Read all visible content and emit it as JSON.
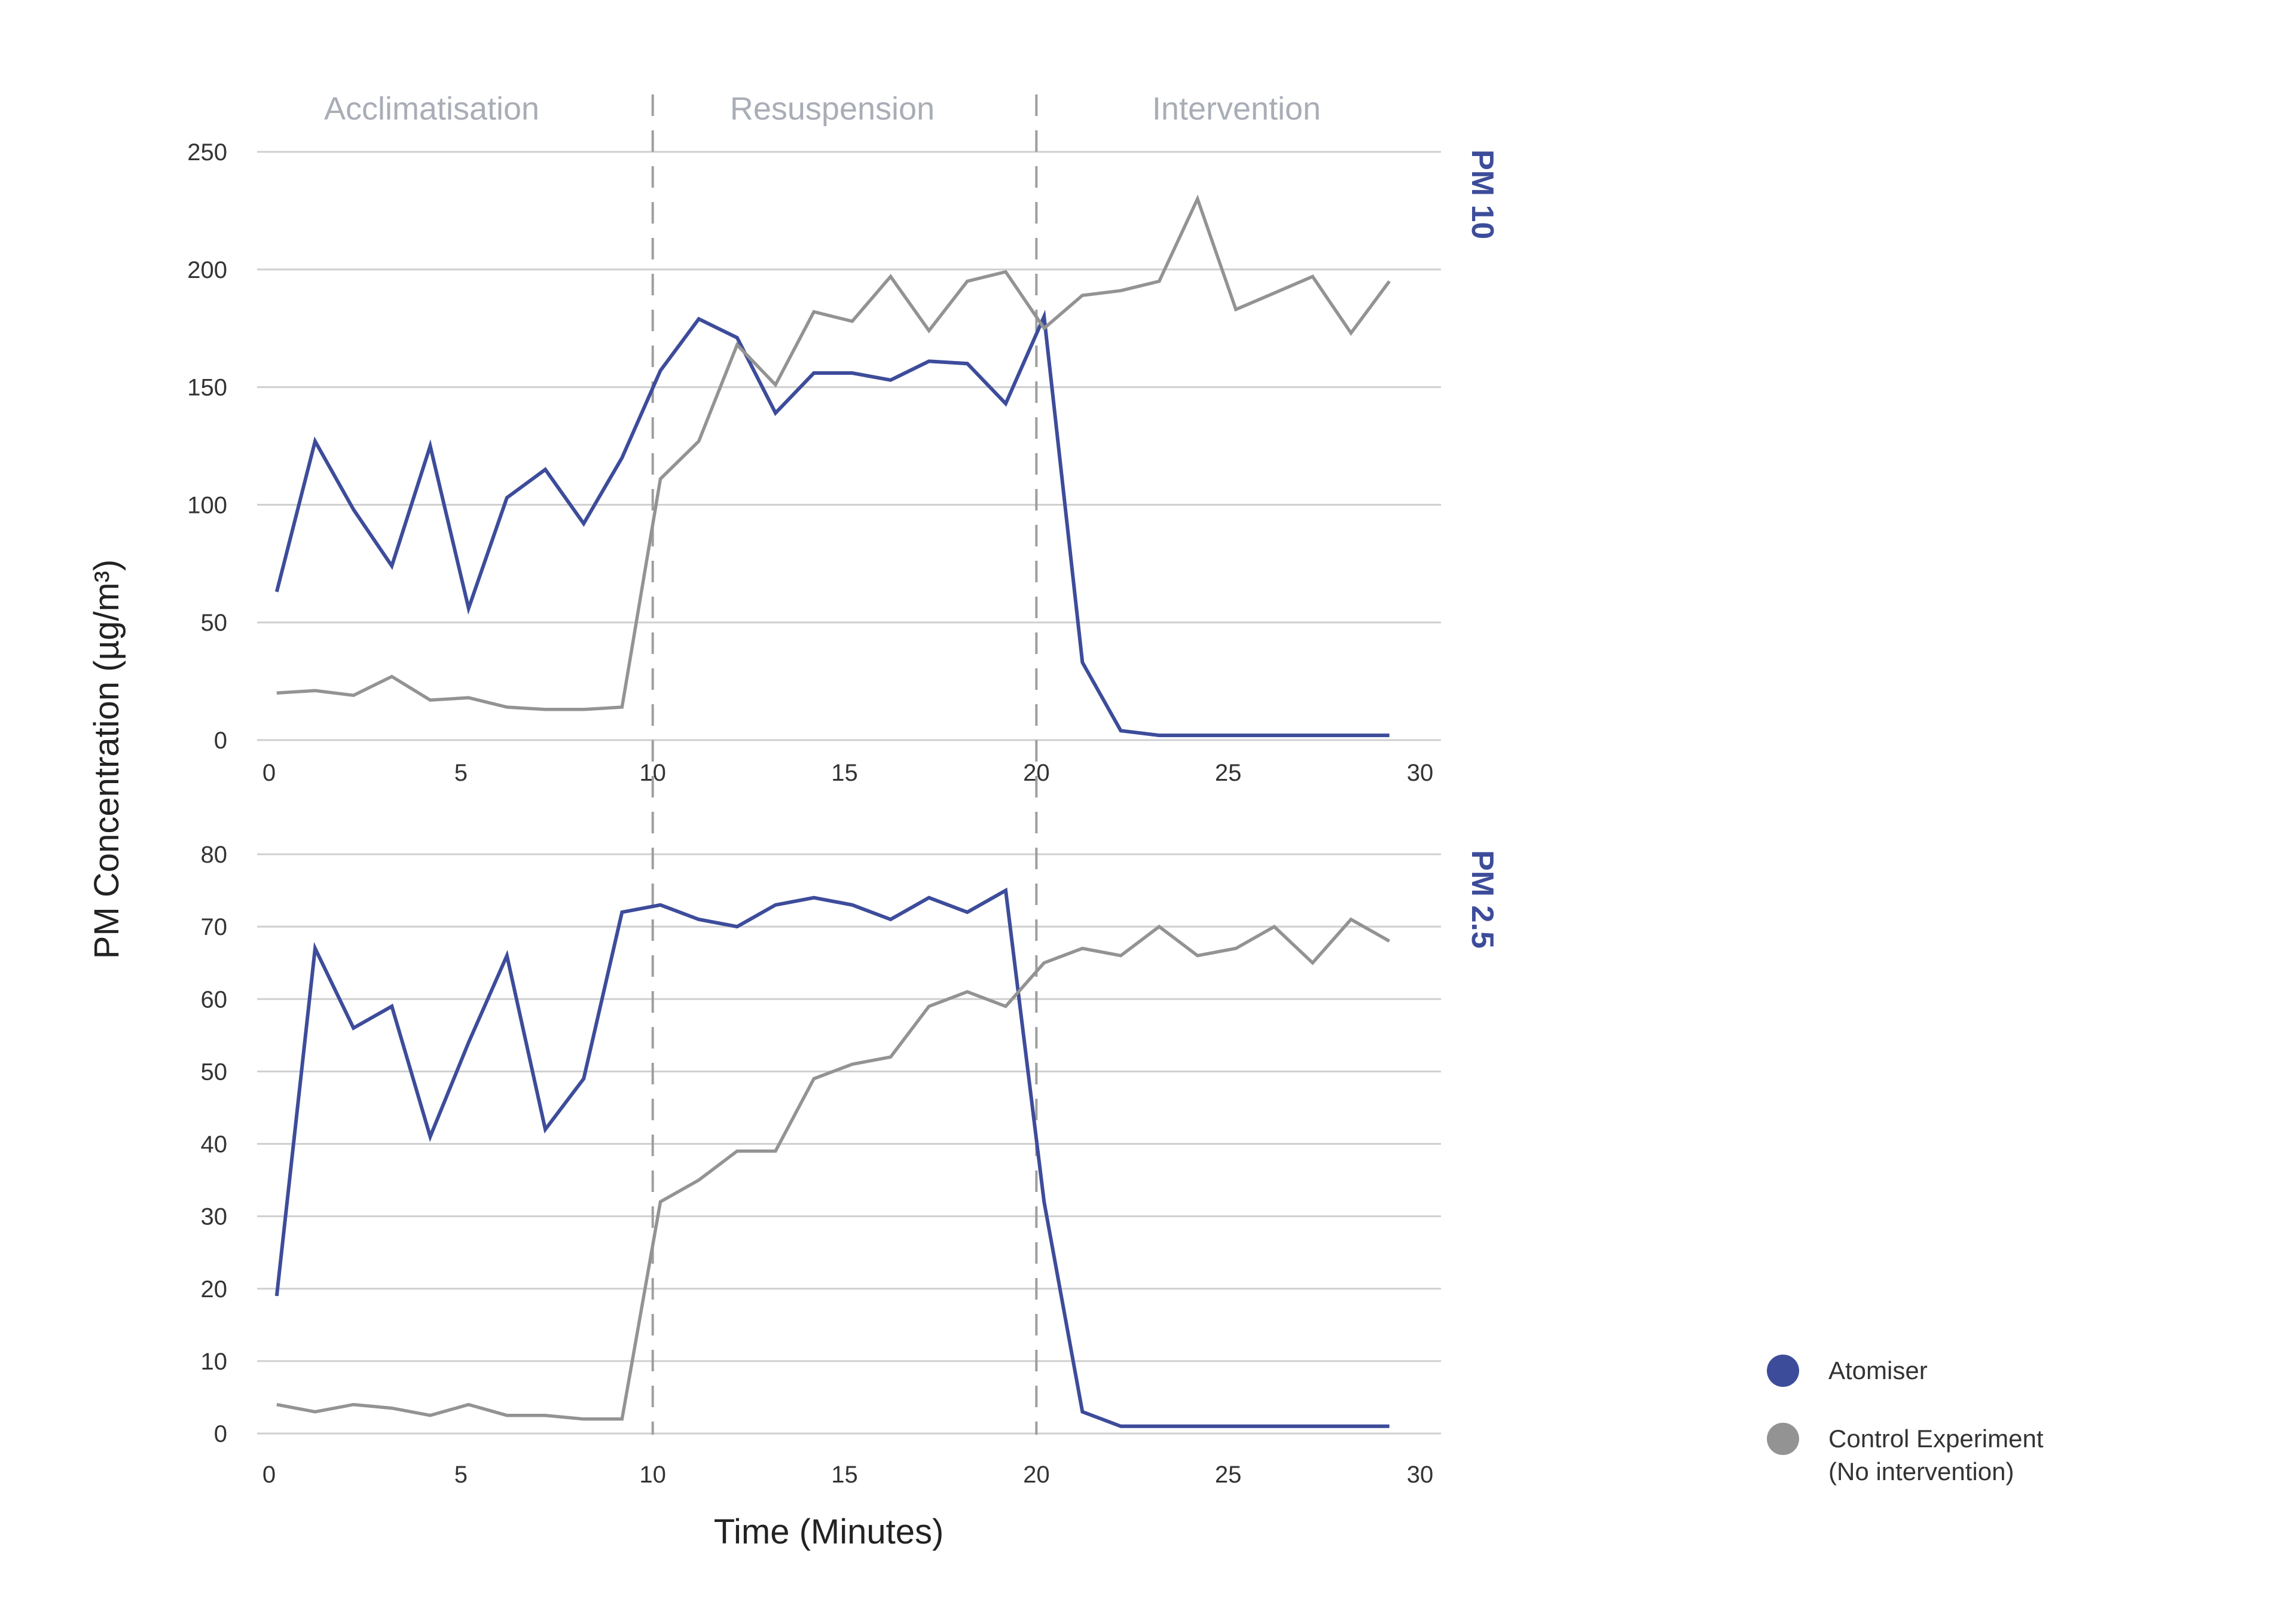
{
  "colors": {
    "atomiser": "#3d4c9a",
    "control": "#939393",
    "grid": "#cfcfcf",
    "divider": "#9e9e9e",
    "phase_text": "#a9adb6"
  },
  "chart_data": {
    "type": "line",
    "phases": [
      "Acclimatisation",
      "Resuspension",
      "Intervention"
    ],
    "phase_boundaries": [
      10,
      20
    ],
    "xlabel": "Time (Minutes)",
    "ylabel": "PM Concentration (µg/m³)",
    "legend": {
      "placement": "bottom-right",
      "atomiser": "Atomiser",
      "control_line1": "Control Experiment",
      "control_line2": "(No intervention)"
    },
    "x_ticks": [
      "0",
      "5",
      "10",
      "15",
      "20",
      "25",
      "30"
    ],
    "panels": [
      {
        "label": "PM 10",
        "xlim": [
          0,
          30
        ],
        "ylim": [
          0,
          250
        ],
        "y_ticks": [
          "0",
          "50",
          "100",
          "150",
          "200",
          "250"
        ],
        "series": [
          {
            "name": "Atomiser",
            "x": [
              0.2,
              1.2,
              2.2,
              3.2,
              4.2,
              5.2,
              6.2,
              7.2,
              8.2,
              9.2,
              10.2,
              11.2,
              12.2,
              13.2,
              14.2,
              15.2,
              16.2,
              17.2,
              18.2,
              19.2,
              20.2,
              21.2,
              22.2,
              23.2,
              24.2,
              25.2,
              26.2,
              27.2,
              28.2,
              29.2
            ],
            "y": [
              63,
              127,
              98,
              74,
              125,
              56,
              103,
              115,
              92,
              120,
              157,
              179,
              171,
              139,
              156,
              156,
              153,
              161,
              160,
              143,
              180,
              33,
              4,
              2,
              2,
              2,
              2,
              2,
              2,
              2
            ]
          },
          {
            "name": "Control Experiment (No intervention)",
            "x": [
              0.2,
              1.2,
              2.2,
              3.2,
              4.2,
              5.2,
              6.2,
              7.2,
              8.2,
              9.2,
              10.2,
              11.2,
              12.2,
              13.2,
              14.2,
              15.2,
              16.2,
              17.2,
              18.2,
              19.2,
              20.2,
              21.2,
              22.2,
              23.2,
              24.2,
              25.2,
              26.2,
              27.2,
              28.2,
              29.2
            ],
            "y": [
              20,
              21,
              19,
              27,
              17,
              18,
              14,
              13,
              13,
              14,
              111,
              127,
              168,
              151,
              182,
              178,
              197,
              174,
              195,
              199,
              175,
              189,
              191,
              195,
              230,
              183,
              190,
              197,
              173,
              195
            ]
          }
        ]
      },
      {
        "label": "PM 2.5",
        "xlim": [
          0,
          30
        ],
        "ylim": [
          0,
          80
        ],
        "y_ticks": [
          "0",
          "10",
          "20",
          "30",
          "40",
          "50",
          "60",
          "70",
          "80"
        ],
        "series": [
          {
            "name": "Atomiser",
            "x": [
              0.2,
              1.2,
              2.2,
              3.2,
              4.2,
              5.2,
              6.2,
              7.2,
              8.2,
              9.2,
              10.2,
              11.2,
              12.2,
              13.2,
              14.2,
              15.2,
              16.2,
              17.2,
              18.2,
              19.2,
              20.2,
              21.2,
              22.2,
              23.2,
              24.2,
              25.2,
              26.2,
              27.2,
              28.2,
              29.2
            ],
            "y": [
              19,
              67,
              56,
              59,
              41,
              54,
              66,
              42,
              49,
              72,
              73,
              71,
              70,
              73,
              74,
              73,
              71,
              74,
              72,
              75,
              32,
              3,
              1,
              1,
              1,
              1,
              1,
              1,
              1,
              1
            ]
          },
          {
            "name": "Control Experiment (No intervention)",
            "x": [
              0.2,
              1.2,
              2.2,
              3.2,
              4.2,
              5.2,
              6.2,
              7.2,
              8.2,
              9.2,
              10.2,
              11.2,
              12.2,
              13.2,
              14.2,
              15.2,
              16.2,
              17.2,
              18.2,
              19.2,
              20.2,
              21.2,
              22.2,
              23.2,
              24.2,
              25.2,
              26.2,
              27.2,
              28.2,
              29.2
            ],
            "y": [
              4,
              3,
              4,
              3.5,
              2.5,
              4,
              2.5,
              2.5,
              2,
              2,
              32,
              35,
              39,
              39,
              49,
              51,
              52,
              59,
              61,
              59,
              65,
              67,
              66,
              70,
              66,
              67,
              70,
              65,
              71,
              68
            ]
          }
        ]
      }
    ]
  }
}
